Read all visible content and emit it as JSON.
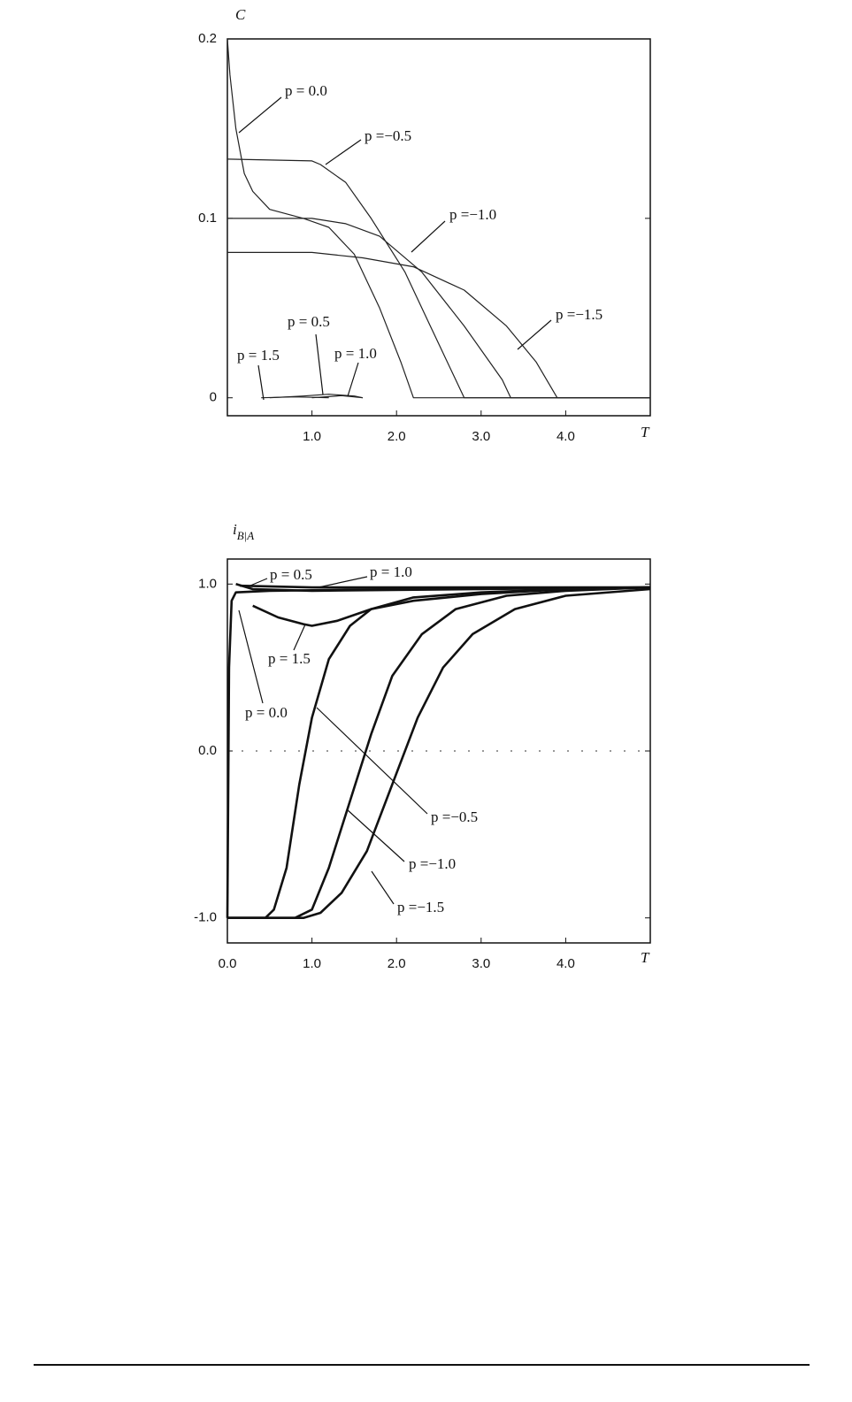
{
  "chart_data": [
    {
      "type": "line",
      "ylabel": "C",
      "xlabel": "T",
      "color": "#222222",
      "xlim": [
        0,
        5
      ],
      "ylim": [
        -0.01,
        0.2
      ],
      "xticks": [
        {
          "value": 1,
          "label": "1.0"
        },
        {
          "value": 2,
          "label": "2.0"
        },
        {
          "value": 3,
          "label": "3.0"
        },
        {
          "value": 4,
          "label": "4.0"
        }
      ],
      "yticks": [
        0,
        0.1,
        0.2
      ],
      "series": [
        {
          "name": "p = 0.0",
          "x": [
            0,
            0.03,
            0.1,
            0.2,
            0.3,
            0.5,
            0.9,
            1.2,
            1.5,
            1.8,
            2.05,
            2.2,
            5
          ],
          "values": [
            0.2,
            0.18,
            0.15,
            0.125,
            0.115,
            0.105,
            0.1,
            0.095,
            0.08,
            0.05,
            0.02,
            0,
            0
          ]
        },
        {
          "name": "p =−0.5",
          "x": [
            0,
            1.0,
            1.1,
            1.4,
            1.7,
            2.1,
            2.4,
            2.7,
            2.8,
            5
          ],
          "values": [
            0.133,
            0.132,
            0.13,
            0.12,
            0.1,
            0.07,
            0.04,
            0.01,
            0,
            0
          ]
        },
        {
          "name": "p =−1.0",
          "x": [
            0,
            1.0,
            1.4,
            1.8,
            2.3,
            2.8,
            3.25,
            3.35,
            5
          ],
          "values": [
            0.1,
            0.1,
            0.097,
            0.09,
            0.07,
            0.04,
            0.01,
            0,
            0
          ]
        },
        {
          "name": "p =−1.5",
          "x": [
            0,
            1.0,
            1.6,
            2.2,
            2.8,
            3.3,
            3.65,
            3.9,
            5
          ],
          "values": [
            0.081,
            0.081,
            0.078,
            0.073,
            0.06,
            0.04,
            0.02,
            0,
            0
          ]
        },
        {
          "name": "p = 0.5",
          "x": [
            0.5,
            0.9,
            1.2,
            1.5,
            1.6
          ],
          "values": [
            0,
            0.001,
            0.002,
            0.001,
            0
          ]
        },
        {
          "name": "p = 1.5",
          "x": [
            0.4,
            0.8,
            1.2
          ],
          "values": [
            0,
            0.0005,
            0
          ]
        },
        {
          "name": "p = 1.0",
          "x": [
            1.0,
            1.35,
            1.6
          ],
          "values": [
            0,
            0.0012,
            0
          ]
        }
      ]
    },
    {
      "type": "line",
      "ylabel": "i",
      "ylabel_subscript": "B|A",
      "xlabel": "T",
      "color": "#111111",
      "zero_line": true,
      "xlim": [
        0,
        5
      ],
      "ylim": [
        -1.15,
        1.15
      ],
      "xticks": [
        {
          "value": 0,
          "label": "0.0"
        },
        {
          "value": 1,
          "label": "1.0"
        },
        {
          "value": 2,
          "label": "2.0"
        },
        {
          "value": 3,
          "label": "3.0"
        },
        {
          "value": 4,
          "label": "4.0"
        }
      ],
      "yticks": [
        {
          "value": -1,
          "label": "-1.0"
        },
        {
          "value": 0,
          "label": "0.0"
        },
        {
          "value": 1,
          "label": "1.0"
        }
      ],
      "series": [
        {
          "name": "p = 0.5",
          "x": [
            0.1,
            0.3,
            1.0,
            3.0,
            5.0
          ],
          "values": [
            1.0,
            0.97,
            0.96,
            0.97,
            0.98
          ]
        },
        {
          "name": "p = 1.0",
          "x": [
            0.15,
            1.0,
            3.0,
            5.0
          ],
          "values": [
            0.99,
            0.98,
            0.98,
            0.98
          ]
        },
        {
          "name": "p = 1.5",
          "x": [
            0.3,
            0.6,
            0.9,
            1.0,
            1.3,
            1.7,
            2.2,
            3.0,
            4.0,
            5.0
          ],
          "values": [
            0.87,
            0.8,
            0.76,
            0.75,
            0.78,
            0.85,
            0.9,
            0.94,
            0.97,
            0.98
          ]
        },
        {
          "name": "p = 0.0",
          "x": [
            0,
            0.02,
            0.05,
            0.1,
            0.5,
            2.0,
            5.0
          ],
          "values": [
            -1,
            0.5,
            0.9,
            0.95,
            0.96,
            0.97,
            0.98
          ]
        },
        {
          "name": "p =−0.5",
          "x": [
            0,
            0.45,
            0.55,
            0.7,
            0.85,
            1.0,
            1.2,
            1.45,
            1.7,
            2.2,
            3.0,
            4.0,
            5.0
          ],
          "values": [
            -1,
            -1,
            -0.95,
            -0.7,
            -0.2,
            0.2,
            0.55,
            0.75,
            0.85,
            0.92,
            0.95,
            0.97,
            0.98
          ]
        },
        {
          "name": "p =−1.0",
          "x": [
            0,
            0.8,
            1.0,
            1.2,
            1.45,
            1.7,
            1.95,
            2.3,
            2.7,
            3.3,
            4.0,
            5.0
          ],
          "values": [
            -1,
            -1,
            -0.95,
            -0.7,
            -0.3,
            0.1,
            0.45,
            0.7,
            0.85,
            0.93,
            0.96,
            0.98
          ]
        },
        {
          "name": "p =−1.5",
          "x": [
            0,
            0.9,
            1.1,
            1.35,
            1.65,
            1.95,
            2.25,
            2.55,
            2.9,
            3.4,
            4.0,
            5.0
          ],
          "values": [
            -1,
            -1,
            -0.97,
            -0.85,
            -0.6,
            -0.2,
            0.2,
            0.5,
            0.7,
            0.85,
            0.93,
            0.97
          ]
        }
      ]
    }
  ]
}
